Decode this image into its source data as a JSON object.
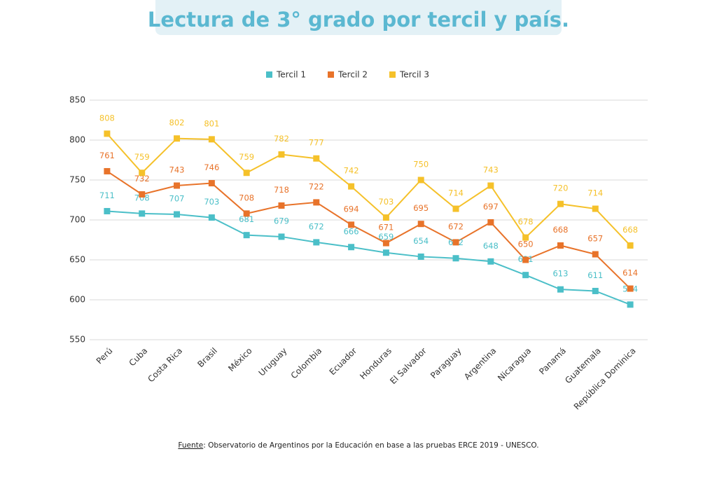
{
  "chart_data": {
    "type": "line",
    "title": "Lectura de 3° grado por tercil y país.",
    "categories": [
      "Perú",
      "Cuba",
      "Costa Rica",
      "Brasil",
      "México",
      "Uruguay",
      "Colombia",
      "Ecuador",
      "Honduras",
      "El Salvador",
      "Paraguay",
      "Argentina",
      "Nicaragua",
      "Panamá",
      "Guatemala",
      "República Dominica"
    ],
    "series": [
      {
        "name": "Tercil 1",
        "color": "#4bbfc8",
        "values": [
          711,
          708,
          707,
          703,
          681,
          679,
          672,
          666,
          659,
          654,
          652,
          648,
          631,
          613,
          611,
          594
        ]
      },
      {
        "name": "Tercil 2",
        "color": "#e8732a",
        "values": [
          761,
          732,
          743,
          746,
          708,
          718,
          722,
          694,
          671,
          695,
          672,
          697,
          650,
          668,
          657,
          614
        ]
      },
      {
        "name": "Tercil 3",
        "color": "#f5c12a",
        "values": [
          808,
          759,
          802,
          801,
          759,
          782,
          777,
          742,
          703,
          750,
          714,
          743,
          678,
          720,
          714,
          668
        ]
      }
    ],
    "ylim": [
      550,
      850
    ],
    "yticks": [
      550,
      600,
      650,
      700,
      750,
      800,
      850
    ],
    "grid": true,
    "legend": "top",
    "source_label": "Fuente",
    "source_text": ": Observatorio de Argentinos por la Educación en base a las pruebas ERCE 2019 - UNESCO."
  }
}
